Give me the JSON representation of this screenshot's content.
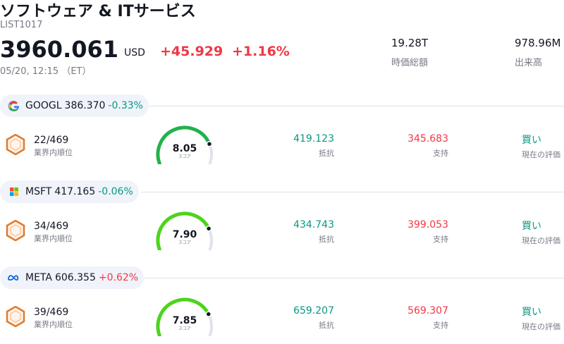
{
  "header": {
    "title": "ソフトウェア & ITサービス",
    "code": "LIST1017",
    "price": "3960.061",
    "currency": "USD",
    "change": "+45.929",
    "change_pct": "+1.16%",
    "timestamp": "05/20, 12:15 （ET）",
    "stats": [
      {
        "value": "19.28T",
        "label": "時価総額"
      },
      {
        "value": "978.96M",
        "label": "出来高"
      }
    ]
  },
  "stocks": [
    {
      "ticker": "GOOGL",
      "price": "386.370",
      "change": "-0.33%",
      "rank": "22/469",
      "rank_label": "業界内順位",
      "score": "8.05",
      "score_label": "スコア",
      "resistance": "419.123",
      "resistance_label": "抵抗",
      "support": "345.683",
      "support_label": "支持",
      "rating": "買い",
      "rating_label": "現在の評価"
    },
    {
      "ticker": "MSFT",
      "price": "417.165",
      "change": "-0.06%",
      "rank": "34/469",
      "rank_label": "業界内順位",
      "score": "7.90",
      "score_label": "スコア",
      "resistance": "434.743",
      "resistance_label": "抵抗",
      "support": "399.053",
      "support_label": "支持",
      "rating": "買い",
      "rating_label": "現在の評価"
    },
    {
      "ticker": "META",
      "price": "606.355",
      "change": "+0.62%",
      "rank": "39/469",
      "rank_label": "業界内順位",
      "score": "7.85",
      "score_label": "スコア",
      "resistance": "659.207",
      "resistance_label": "抵抗",
      "support": "569.307",
      "support_label": "支持",
      "rating": "買い",
      "rating_label": "現在の評価"
    }
  ]
}
